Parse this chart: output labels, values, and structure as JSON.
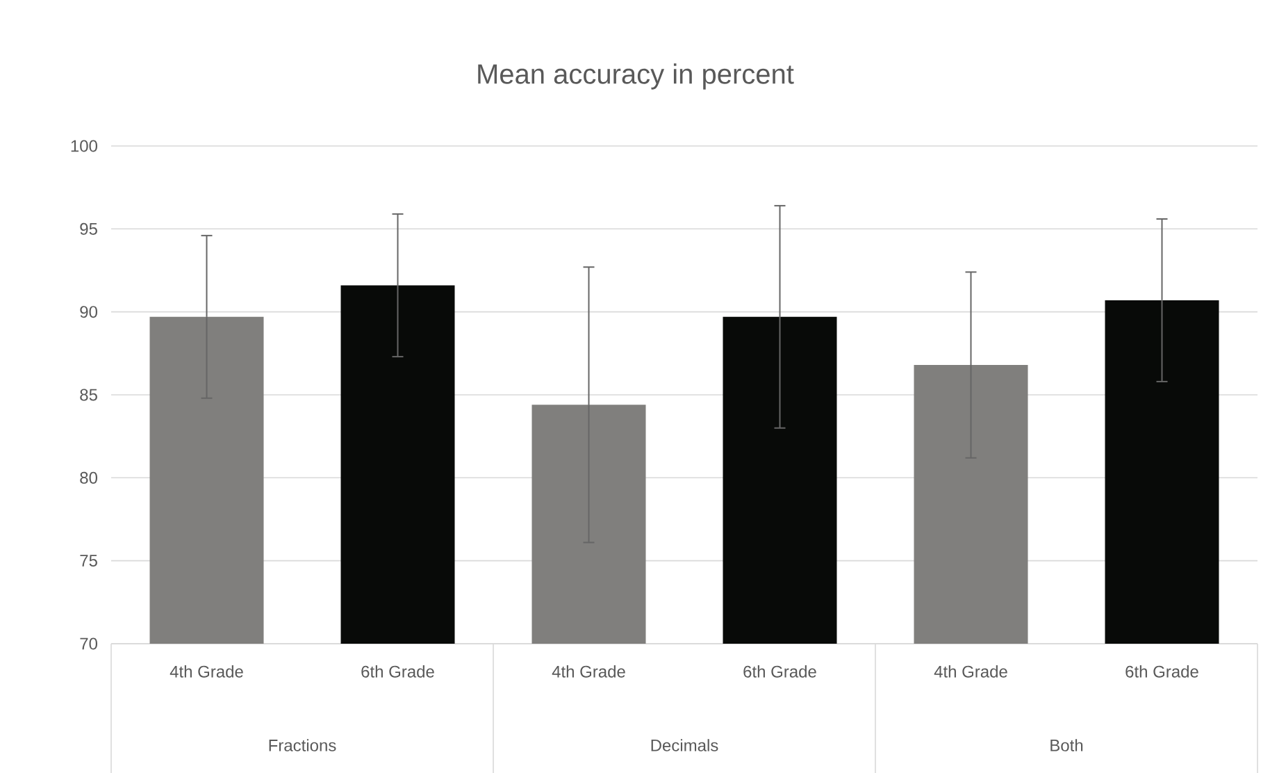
{
  "chart_data": {
    "type": "bar",
    "title": "Mean accuracy in percent",
    "categories": [
      "4th Grade",
      "6th Grade",
      "4th Grade",
      "6th Grade",
      "4th Grade",
      "6th Grade"
    ],
    "values": [
      89.7,
      91.6,
      84.4,
      89.7,
      86.8,
      90.7
    ],
    "errors": [
      4.9,
      4.3,
      8.3,
      6.7,
      5.6,
      4.9
    ],
    "colors": [
      "#807f7d",
      "#080a08",
      "#807f7d",
      "#080a08",
      "#807f7d",
      "#080a08"
    ],
    "annotations": [
      "Fractions",
      "Decimals",
      "Both"
    ],
    "ylim": [
      70,
      100
    ],
    "yticks": [
      70,
      75,
      80,
      85,
      90,
      95,
      100
    ],
    "grid": "y"
  }
}
